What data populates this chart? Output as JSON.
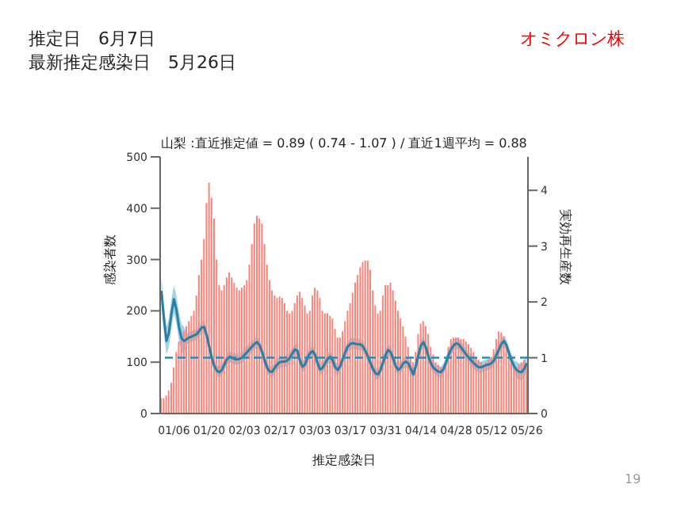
{
  "chart_data": {
    "type": "bar",
    "title": "山梨 :直近推定値 = 0.89 ( 0.74 - 1.07 ) / 直近1週平均 = 0.88",
    "annotations": [
      "推定日　6月7日",
      "最新推定感染日　5月26日",
      "オミクロン株",
      "19"
    ],
    "xlabel": "推定感染日",
    "ylabel": "感染者数",
    "y2label": "実効再生産数",
    "categories": [
      null,
      null,
      null,
      null,
      null,
      "01/06",
      null,
      null,
      null,
      null,
      null,
      null,
      null,
      null,
      null,
      null,
      null,
      null,
      null,
      "01/20",
      null,
      null,
      null,
      null,
      null,
      null,
      null,
      null,
      null,
      null,
      null,
      null,
      null,
      "02/03",
      null,
      null,
      null,
      null,
      null,
      null,
      null,
      null,
      null,
      null,
      null,
      null,
      null,
      "02/17",
      null,
      null,
      null,
      null,
      null,
      null,
      null,
      null,
      null,
      null,
      null,
      null,
      null,
      "03/03",
      null,
      null,
      null,
      null,
      null,
      null,
      null,
      null,
      null,
      null,
      null,
      null,
      null,
      "03/17",
      null,
      null,
      null,
      null,
      null,
      null,
      null,
      null,
      null,
      null,
      null,
      null,
      null,
      "03/31",
      null,
      null,
      null,
      null,
      null,
      null,
      null,
      null,
      null,
      null,
      null,
      null,
      null,
      "04/14",
      null,
      null,
      null,
      null,
      null,
      null,
      null,
      null,
      null,
      null,
      null,
      null,
      null,
      "04/28",
      null,
      null,
      null,
      null,
      null,
      null,
      null,
      null,
      null,
      null,
      null,
      null,
      null,
      "05/12",
      null,
      null,
      null,
      null,
      null,
      null,
      null,
      null,
      null,
      null,
      null,
      null,
      null,
      "05/26"
    ],
    "series": [
      {
        "color": "#f8847a",
        "values": [
          30,
          30,
          35,
          45,
          60,
          90,
          120,
          140,
          150,
          160,
          170,
          180,
          190,
          200,
          230,
          270,
          300,
          340,
          410,
          450,
          420,
          380,
          300,
          250,
          240,
          250,
          265,
          275,
          265,
          255,
          245,
          240,
          245,
          250,
          260,
          290,
          330,
          370,
          385,
          380,
          370,
          330,
          290,
          260,
          240,
          230,
          225,
          228,
          225,
          215,
          200,
          195,
          200,
          215,
          230,
          237,
          225,
          210,
          195,
          200,
          230,
          245,
          240,
          225,
          200,
          195,
          195,
          190,
          185,
          165,
          148,
          148,
          160,
          180,
          200,
          215,
          235,
          255,
          270,
          285,
          295,
          298,
          298,
          280,
          240,
          210,
          195,
          200,
          230,
          250,
          250,
          255,
          240,
          220,
          200,
          185,
          170,
          150,
          130,
          110,
          100,
          120,
          155,
          175,
          180,
          170,
          155,
          130,
          115,
          100,
          95,
          90,
          85,
          100,
          130,
          145,
          148,
          148,
          148,
          145,
          145,
          140,
          135,
          128,
          120,
          110,
          105,
          100,
          95,
          100,
          105,
          110,
          125,
          145,
          160,
          158,
          150,
          135,
          115,
          100,
          95,
          90,
          95,
          100,
          105,
          100
        ]
      },
      {
        "type": "line",
        "axis": "y2",
        "color": "#2b7fa6",
        "values": [
          2.2,
          1.7,
          1.3,
          1.45,
          1.8,
          2.05,
          1.85,
          1.55,
          1.35,
          1.3,
          1.33,
          1.36,
          1.38,
          1.4,
          1.42,
          1.48,
          1.54,
          1.55,
          1.4,
          1.2,
          1.0,
          0.85,
          0.77,
          0.74,
          0.78,
          0.88,
          0.97,
          1.02,
          1.0,
          0.98,
          0.97,
          0.98,
          1.0,
          1.05,
          1.1,
          1.15,
          1.2,
          1.25,
          1.28,
          1.22,
          1.1,
          0.95,
          0.82,
          0.75,
          0.75,
          0.82,
          0.88,
          0.92,
          0.93,
          0.93,
          0.95,
          1.0,
          1.08,
          1.15,
          1.12,
          0.95,
          0.84,
          0.88,
          1.0,
          1.08,
          1.12,
          1.05,
          0.9,
          0.79,
          0.82,
          0.9,
          0.98,
          1.02,
          0.95,
          0.83,
          0.78,
          0.85,
          0.98,
          1.1,
          1.2,
          1.25,
          1.26,
          1.25,
          1.24,
          1.24,
          1.2,
          1.12,
          1.02,
          0.9,
          0.8,
          0.72,
          0.7,
          0.78,
          0.92,
          1.05,
          1.14,
          1.1,
          0.98,
          0.85,
          0.78,
          0.82,
          0.9,
          0.93,
          0.9,
          0.8,
          0.7,
          0.85,
          1.05,
          1.22,
          1.28,
          1.18,
          1.02,
          0.9,
          0.82,
          0.78,
          0.75,
          0.74,
          0.8,
          0.92,
          1.05,
          1.15,
          1.22,
          1.26,
          1.24,
          1.18,
          1.12,
          1.06,
          1.0,
          0.95,
          0.9,
          0.86,
          0.83,
          0.83,
          0.85,
          0.87,
          0.88,
          0.9,
          0.95,
          1.05,
          1.15,
          1.25,
          1.3,
          1.22,
          1.08,
          0.95,
          0.85,
          0.78,
          0.75,
          0.74,
          0.8,
          0.9
        ],
        "lower": [
          1.95,
          1.45,
          1.05,
          1.2,
          1.55,
          1.8,
          1.6,
          1.3,
          1.1,
          1.05,
          1.23,
          1.26,
          1.28,
          1.3,
          1.32,
          1.38,
          1.44,
          1.45,
          1.3,
          1.1,
          0.9,
          0.75,
          0.67,
          0.64,
          0.68,
          0.78,
          0.87,
          0.92,
          0.9,
          0.88,
          0.87,
          0.88,
          0.9,
          0.95,
          1.0,
          1.05,
          1.1,
          1.15,
          1.18,
          1.12,
          1.0,
          0.85,
          0.72,
          0.65,
          0.65,
          0.72,
          0.78,
          0.82,
          0.83,
          0.83,
          0.85,
          0.9,
          0.98,
          1.05,
          1.02,
          0.85,
          0.74,
          0.78,
          0.9,
          0.98,
          1.02,
          0.95,
          0.8,
          0.69,
          0.72,
          0.8,
          0.88,
          0.92,
          0.85,
          0.73,
          0.68,
          0.75,
          0.88,
          1.0,
          1.1,
          1.15,
          1.16,
          1.15,
          1.14,
          1.14,
          1.1,
          1.02,
          0.92,
          0.8,
          0.7,
          0.62,
          0.6,
          0.68,
          0.82,
          0.95,
          1.04,
          1.0,
          0.88,
          0.75,
          0.68,
          0.72,
          0.8,
          0.83,
          0.8,
          0.7,
          0.6,
          0.75,
          0.95,
          1.12,
          1.18,
          1.08,
          0.92,
          0.8,
          0.72,
          0.68,
          0.65,
          0.64,
          0.7,
          0.82,
          0.95,
          1.05,
          1.12,
          1.16,
          1.14,
          1.08,
          1.02,
          0.96,
          0.9,
          0.85,
          0.8,
          0.76,
          0.73,
          0.73,
          0.75,
          0.77,
          0.78,
          0.8,
          0.85,
          0.95,
          1.05,
          1.15,
          1.2,
          1.12,
          0.98,
          0.85,
          0.75,
          0.63,
          0.6,
          0.59,
          0.65,
          0.75
        ],
        "upper": [
          2.45,
          1.95,
          1.55,
          1.7,
          2.05,
          2.3,
          2.1,
          1.8,
          1.6,
          1.55,
          1.43,
          1.46,
          1.48,
          1.5,
          1.52,
          1.58,
          1.64,
          1.65,
          1.5,
          1.3,
          1.1,
          0.95,
          0.87,
          0.84,
          0.88,
          0.98,
          1.07,
          1.12,
          1.1,
          1.08,
          1.07,
          1.08,
          1.1,
          1.15,
          1.2,
          1.25,
          1.3,
          1.35,
          1.38,
          1.32,
          1.2,
          1.05,
          0.92,
          0.85,
          0.85,
          0.92,
          0.98,
          1.02,
          1.03,
          1.03,
          1.05,
          1.1,
          1.18,
          1.25,
          1.22,
          1.05,
          0.94,
          0.98,
          1.1,
          1.18,
          1.22,
          1.15,
          1.0,
          0.89,
          0.92,
          1.0,
          1.08,
          1.12,
          1.05,
          0.93,
          0.88,
          0.95,
          1.08,
          1.2,
          1.3,
          1.35,
          1.36,
          1.35,
          1.34,
          1.34,
          1.3,
          1.22,
          1.12,
          1.0,
          0.9,
          0.82,
          0.8,
          0.88,
          1.02,
          1.15,
          1.24,
          1.2,
          1.08,
          0.95,
          0.88,
          0.92,
          1.0,
          1.03,
          1.0,
          0.9,
          0.8,
          0.95,
          1.15,
          1.32,
          1.38,
          1.28,
          1.12,
          1.0,
          0.92,
          0.88,
          0.85,
          0.84,
          0.9,
          1.02,
          1.15,
          1.25,
          1.32,
          1.36,
          1.34,
          1.28,
          1.22,
          1.16,
          1.1,
          1.05,
          1.0,
          0.96,
          0.93,
          0.93,
          0.95,
          0.97,
          0.98,
          1.0,
          1.05,
          1.15,
          1.25,
          1.35,
          1.4,
          1.32,
          1.18,
          1.05,
          0.95,
          0.93,
          0.9,
          0.89,
          0.95,
          1.05
        ]
      }
    ],
    "ylim": [
      0,
      500
    ],
    "yticks": [
      0,
      100,
      200,
      300,
      400,
      500
    ],
    "y2lim": [
      0,
      4.6
    ],
    "y2ticks": [
      0,
      1,
      2,
      3,
      4
    ],
    "ref_lines": [
      {
        "axis": "y2",
        "value": 1,
        "color": "#2a8ab5",
        "line_style": "dashed"
      }
    ],
    "grid": false,
    "legend": false
  }
}
